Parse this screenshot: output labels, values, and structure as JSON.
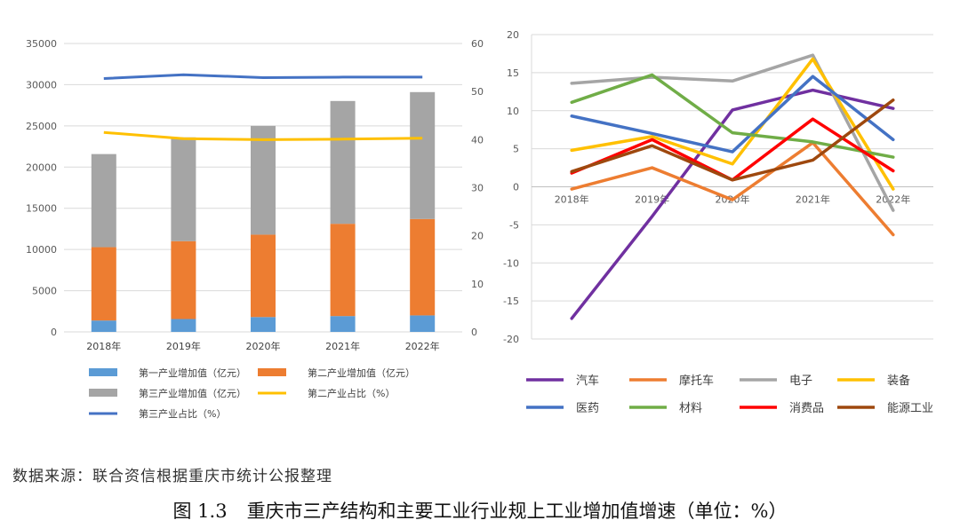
{
  "chart_data": [
    {
      "type": "bar",
      "stacked": true,
      "categories": [
        "2018年",
        "2019年",
        "2020年",
        "2021年",
        "2022年"
      ],
      "series": [
        {
          "name": "第一产业增加值（亿元）",
          "type": "bar",
          "axis": "left",
          "color": "#5b9bd5",
          "values": [
            1380,
            1560,
            1800,
            1920,
            2000
          ]
        },
        {
          "name": "第二产业增加值（亿元）",
          "type": "bar",
          "axis": "left",
          "color": "#ed7d31",
          "values": [
            8900,
            9450,
            10000,
            11200,
            11700
          ]
        },
        {
          "name": "第三产业增加值（亿元）",
          "type": "bar",
          "axis": "left",
          "color": "#a5a5a5",
          "values": [
            11300,
            12600,
            13200,
            14900,
            15400
          ]
        },
        {
          "name": "第二产业占比（%）",
          "type": "line",
          "axis": "right",
          "color": "#ffc000",
          "values": [
            41.5,
            40.2,
            40.0,
            40.1,
            40.3
          ]
        },
        {
          "name": "第三产业占比（%）",
          "type": "line",
          "axis": "right",
          "color": "#4472c4",
          "values": [
            52.7,
            53.5,
            52.9,
            53.0,
            53.0
          ]
        }
      ],
      "ylim_left": [
        0,
        35000
      ],
      "yticks_left": [
        "0",
        "5000",
        "10000",
        "15000",
        "20000",
        "25000",
        "30000",
        "35000"
      ],
      "ylim_right": [
        0,
        60
      ],
      "yticks_right": [
        "0",
        "10",
        "20",
        "30",
        "40",
        "50",
        "60"
      ],
      "legend_rows": [
        [
          "第一产业增加值（亿元）",
          "第二产业增加值（亿元）"
        ],
        [
          "第三产业增加值（亿元）",
          "第二产业占比（%）"
        ],
        [
          "第三产业占比（%）"
        ]
      ],
      "legend_position": "bottom"
    },
    {
      "type": "line",
      "categories": [
        "2018年",
        "2019年",
        "2020年",
        "2021年",
        "2022年"
      ],
      "series": [
        {
          "name": "汽车",
          "color": "#7030a0",
          "values": [
            -17.3,
            -3.9,
            10.1,
            12.7,
            10.3
          ]
        },
        {
          "name": "摩托车",
          "color": "#ed7d31",
          "values": [
            -0.3,
            2.5,
            -1.7,
            5.8,
            -6.3
          ]
        },
        {
          "name": "电子",
          "color": "#a5a5a5",
          "values": [
            13.6,
            14.4,
            13.9,
            17.3,
            -3.1
          ]
        },
        {
          "name": "装备",
          "color": "#ffc000",
          "values": [
            4.8,
            6.6,
            3.0,
            16.8,
            -0.3
          ]
        },
        {
          "name": "医药",
          "color": "#4472c4",
          "values": [
            9.3,
            7.0,
            4.6,
            14.5,
            6.2
          ]
        },
        {
          "name": "材料",
          "color": "#70ad47",
          "values": [
            11.1,
            14.7,
            7.1,
            5.9,
            3.9
          ]
        },
        {
          "name": "消费品",
          "color": "#ff0000",
          "values": [
            1.8,
            6.2,
            0.9,
            8.9,
            2.1
          ]
        },
        {
          "name": "能源工业",
          "color": "#9e480e",
          "values": [
            2.0,
            5.4,
            0.9,
            3.5,
            11.4
          ]
        }
      ],
      "ylim": [
        -20,
        20
      ],
      "yticks": [
        "-20",
        "-15",
        "-10",
        "-5",
        "0",
        "5",
        "10",
        "15",
        "20"
      ],
      "grid": true,
      "legend_position": "bottom"
    }
  ],
  "source_note": "数据来源：联合资信根据重庆市统计公报整理",
  "caption": {
    "number": "图 1.3",
    "title": "重庆市三产结构和主要工业行业规上工业增加值增速（单位：%）"
  }
}
